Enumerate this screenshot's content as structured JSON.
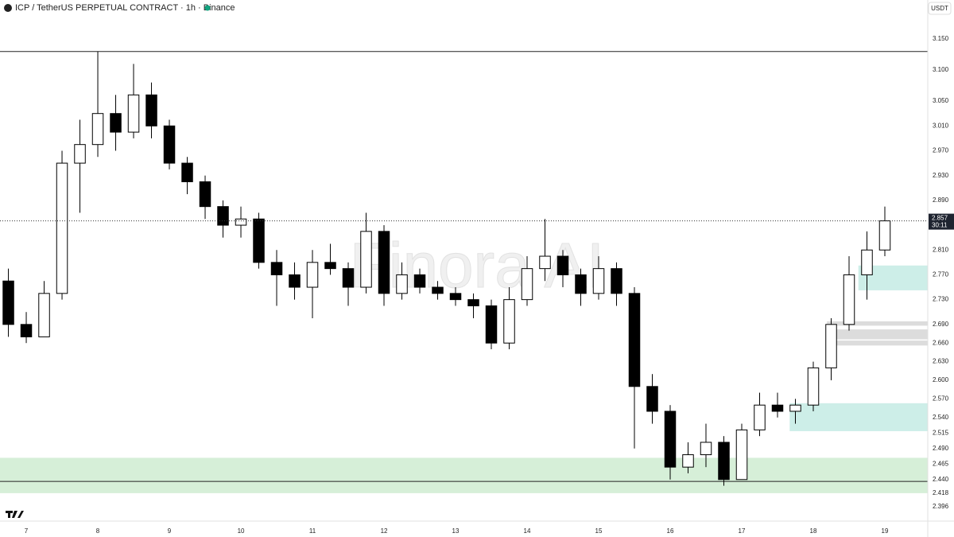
{
  "header": {
    "symbol": "ICP / TetherUS PERPETUAL CONTRACT · 1h · Binance",
    "currency": "USDT"
  },
  "watermark": "Finora AI",
  "chart_data": {
    "type": "candlestick",
    "x": [
      6.75,
      7,
      7.25,
      7.5,
      7.75,
      8,
      8.25,
      8.5,
      8.75,
      9,
      9.25,
      9.5,
      9.75,
      10,
      10.25,
      10.5,
      10.75,
      11,
      11.25,
      11.5,
      11.75,
      12,
      12.25,
      12.5,
      12.75,
      13,
      13.25,
      13.5,
      13.75,
      14,
      14.25,
      14.5,
      14.75,
      15,
      15.25,
      15.5,
      15.75,
      16,
      16.25,
      16.5,
      16.75,
      17,
      17.25,
      17.5,
      17.75,
      18,
      18.25,
      18.5,
      18.75,
      19
    ],
    "open": [
      2.76,
      2.69,
      2.67,
      2.74,
      2.95,
      2.98,
      3.03,
      3.0,
      3.06,
      3.01,
      2.95,
      2.92,
      2.88,
      2.85,
      2.86,
      2.79,
      2.77,
      2.75,
      2.79,
      2.78,
      2.75,
      2.84,
      2.74,
      2.77,
      2.75,
      2.74,
      2.73,
      2.72,
      2.66,
      2.73,
      2.78,
      2.8,
      2.77,
      2.74,
      2.78,
      2.74,
      2.59,
      2.55,
      2.46,
      2.48,
      2.5,
      2.44,
      2.52,
      2.56,
      2.55,
      2.56,
      2.62,
      2.69,
      2.77,
      2.81
    ],
    "high": [
      2.78,
      2.71,
      2.76,
      2.97,
      3.02,
      3.13,
      3.06,
      3.11,
      3.08,
      3.02,
      2.96,
      2.93,
      2.89,
      2.88,
      2.87,
      2.81,
      2.79,
      2.81,
      2.82,
      2.79,
      2.87,
      2.85,
      2.79,
      2.78,
      2.76,
      2.75,
      2.74,
      2.73,
      2.75,
      2.8,
      2.86,
      2.81,
      2.78,
      2.8,
      2.79,
      2.75,
      2.61,
      2.56,
      2.5,
      2.53,
      2.51,
      2.53,
      2.58,
      2.58,
      2.57,
      2.63,
      2.7,
      2.8,
      2.84,
      2.88
    ],
    "low": [
      2.67,
      2.66,
      2.67,
      2.73,
      2.87,
      2.96,
      2.97,
      2.99,
      2.99,
      2.94,
      2.9,
      2.86,
      2.83,
      2.83,
      2.78,
      2.72,
      2.73,
      2.7,
      2.77,
      2.72,
      2.74,
      2.72,
      2.73,
      2.74,
      2.73,
      2.72,
      2.7,
      2.65,
      2.65,
      2.72,
      2.76,
      2.75,
      2.72,
      2.73,
      2.72,
      2.49,
      2.53,
      2.44,
      2.45,
      2.46,
      2.43,
      2.44,
      2.51,
      2.54,
      2.53,
      2.55,
      2.6,
      2.68,
      2.73,
      2.8
    ],
    "close": [
      2.69,
      2.67,
      2.74,
      2.95,
      2.98,
      3.03,
      3.0,
      3.06,
      3.01,
      2.95,
      2.92,
      2.88,
      2.85,
      2.86,
      2.79,
      2.77,
      2.75,
      2.79,
      2.78,
      2.75,
      2.84,
      2.74,
      2.77,
      2.75,
      2.74,
      2.73,
      2.72,
      2.66,
      2.73,
      2.78,
      2.8,
      2.77,
      2.74,
      2.78,
      2.74,
      2.59,
      2.55,
      2.46,
      2.48,
      2.5,
      2.44,
      2.52,
      2.56,
      2.55,
      2.56,
      2.62,
      2.69,
      2.77,
      2.81,
      2.857
    ],
    "up_color": "#ffffff",
    "down_color": "#000000",
    "outline_color": "#000000",
    "countdown": "30:11",
    "xlim": [
      6.633,
      19.6
    ],
    "ylim": [
      2.373,
      3.213
    ],
    "xticks": [
      7,
      8,
      9,
      10,
      11,
      12,
      13,
      14,
      15,
      16,
      17,
      18,
      19
    ],
    "yticks": [
      {
        "value": 3.15,
        "label": "3.150"
      },
      {
        "value": 3.1,
        "label": "3.100"
      },
      {
        "value": 3.05,
        "label": "3.050"
      },
      {
        "value": 3.01,
        "label": "3.010"
      },
      {
        "value": 2.97,
        "label": "2.970"
      },
      {
        "value": 2.93,
        "label": "2.930"
      },
      {
        "value": 2.89,
        "label": "2.890"
      },
      {
        "value": 2.81,
        "label": "2.810"
      },
      {
        "value": 2.77,
        "label": "2.770"
      },
      {
        "value": 2.73,
        "label": "2.730"
      },
      {
        "value": 2.69,
        "label": "2.690"
      },
      {
        "value": 2.66,
        "label": "2.660"
      },
      {
        "value": 2.63,
        "label": "2.630"
      },
      {
        "value": 2.6,
        "label": "2.600"
      },
      {
        "value": 2.57,
        "label": "2.570"
      },
      {
        "value": 2.54,
        "label": "2.540"
      },
      2.515,
      {
        "value": 2.49,
        "label": "2.490"
      },
      2.465,
      {
        "value": 2.44,
        "label": "2.440"
      },
      2.418,
      2.396
    ],
    "hlines": [
      3.13,
      2.437
    ],
    "zones": [
      {
        "from": 6.633,
        "top": 2.475,
        "bottom": 2.418,
        "color": "#d6efd8"
      },
      {
        "from": 18.63,
        "top": 2.785,
        "bottom": 2.745,
        "color": "#cdeee8"
      },
      {
        "from": 17.67,
        "top": 2.563,
        "bottom": 2.518,
        "color": "#cdeee8"
      },
      {
        "from": 18.19,
        "top": 2.695,
        "bottom": 2.688,
        "color": "#dcdcdc"
      },
      {
        "from": 18.19,
        "top": 2.682,
        "bottom": 2.666,
        "color": "#dcdcdc"
      },
      {
        "from": 18.19,
        "top": 2.664,
        "bottom": 2.656,
        "color": "#dcdcdc"
      }
    ]
  }
}
